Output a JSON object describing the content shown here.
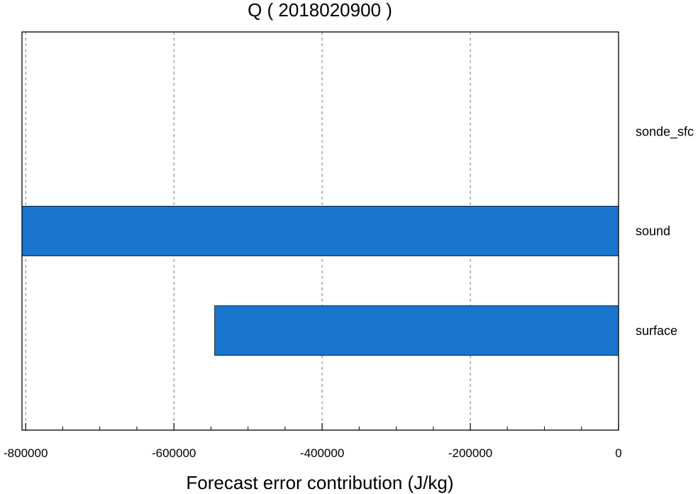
{
  "chart_data": {
    "type": "bar",
    "orientation": "horizontal",
    "title": "Q ( 2018020900 )",
    "xlabel": "Forecast error contribution (J/kg)",
    "ylabel": "",
    "xlim": [
      -805000,
      0
    ],
    "xticks": [
      -800000,
      -600000,
      -400000,
      -200000,
      0
    ],
    "xtick_labels": [
      "-800000",
      "-600000",
      "-400000",
      "-200000",
      "0"
    ],
    "minor_tick_step": 50000,
    "grid": {
      "x": true,
      "style": "dashed"
    },
    "categories": [
      "sonde_sfc",
      "sound",
      "surface"
    ],
    "values": [
      0,
      -805000,
      -545000
    ],
    "bar_color": "#1a75cf",
    "label_position": "right"
  }
}
